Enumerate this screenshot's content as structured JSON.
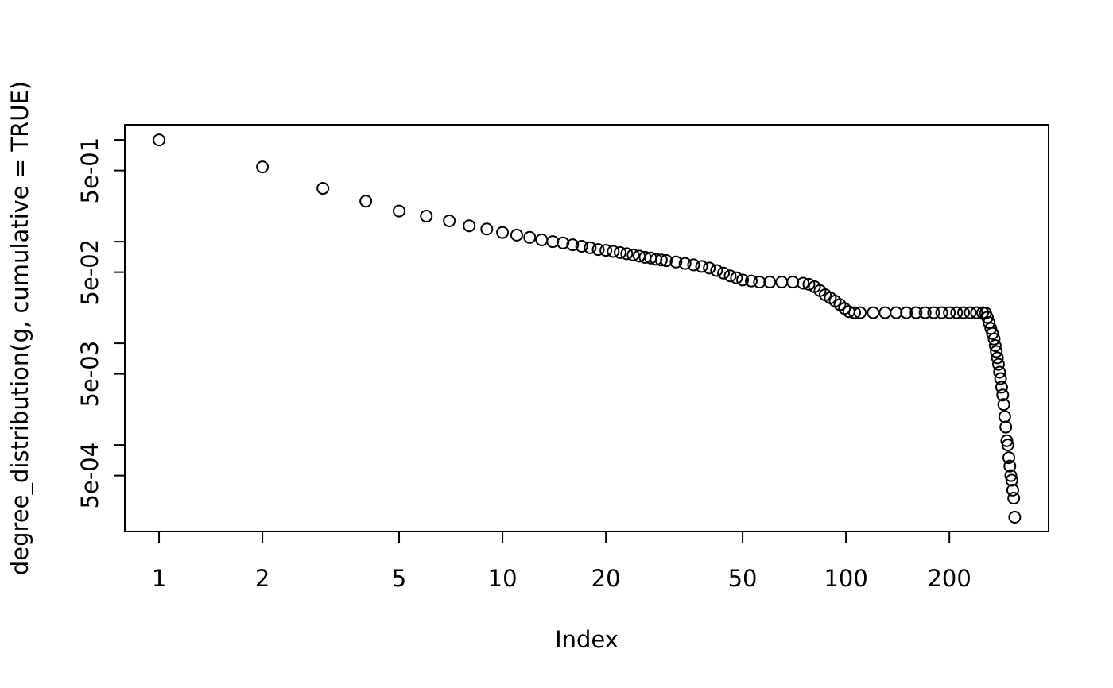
{
  "chart_data": {
    "type": "scatter",
    "xlabel": "Index",
    "ylabel": "degree_distribution(g, cumulative = TRUE)",
    "xlog": true,
    "ylog": true,
    "color": "#000000",
    "xlim": [
      0.795,
      389
    ],
    "ylim": [
      0.000141,
      1.41
    ],
    "xticks": [
      1,
      2,
      5,
      10,
      20,
      50,
      100,
      200
    ],
    "yticks": [
      {
        "value": 1,
        "label": null
      },
      {
        "value": 0.5,
        "label": "5e-01"
      },
      {
        "value": 0.1,
        "label": null
      },
      {
        "value": 0.05,
        "label": "5e-02"
      },
      {
        "value": 0.01,
        "label": null
      },
      {
        "value": 0.005,
        "label": "5e-03"
      },
      {
        "value": 0.001,
        "label": null
      },
      {
        "value": 0.0005,
        "label": "5e-04"
      }
    ],
    "x": [
      1,
      2,
      3,
      4,
      5,
      6,
      7,
      8,
      9,
      10,
      11,
      12,
      13,
      14,
      15,
      16,
      17,
      18,
      19,
      20,
      21,
      22,
      23,
      24,
      25,
      26,
      27,
      28,
      29,
      30,
      32,
      34,
      36,
      38,
      40,
      42,
      44,
      46,
      48,
      50,
      53,
      56,
      60,
      65,
      70,
      75,
      78,
      81,
      84,
      87,
      90,
      93,
      96,
      99,
      102,
      106,
      110,
      120,
      130,
      140,
      150,
      160,
      170,
      180,
      190,
      200,
      210,
      220,
      230,
      240,
      250,
      255,
      258,
      261,
      264,
      267,
      270,
      272,
      274,
      276,
      278,
      280,
      282,
      284,
      286,
      288,
      290,
      292,
      294,
      296,
      298,
      300,
      302,
      304,
      306,
      308,
      310
    ],
    "values": [
      1,
      0.542,
      0.334,
      0.25,
      0.2,
      0.178,
      0.16,
      0.143,
      0.133,
      0.123,
      0.116,
      0.11,
      0.104,
      0.1,
      0.097,
      0.093,
      0.09,
      0.087,
      0.0835,
      0.082,
      0.08,
      0.078,
      0.076,
      0.074,
      0.072,
      0.07,
      0.069,
      0.067,
      0.066,
      0.065,
      0.063,
      0.061,
      0.059,
      0.057,
      0.055,
      0.052,
      0.049,
      0.046,
      0.044,
      0.042,
      0.041,
      0.04,
      0.04,
      0.04,
      0.04,
      0.039,
      0.038,
      0.036,
      0.033,
      0.03,
      0.028,
      0.026,
      0.024,
      0.022,
      0.0205,
      0.02,
      0.02,
      0.02,
      0.02,
      0.02,
      0.02,
      0.02,
      0.02,
      0.02,
      0.02,
      0.02,
      0.02,
      0.02,
      0.02,
      0.02,
      0.02,
      0.0198,
      0.018,
      0.016,
      0.014,
      0.0125,
      0.011,
      0.0095,
      0.0083,
      0.0072,
      0.0062,
      0.0052,
      0.0045,
      0.0037,
      0.0031,
      0.0025,
      0.0019,
      0.0015,
      0.0011,
      0.001,
      0.00075,
      0.00062,
      0.0005,
      0.00045,
      0.00036,
      0.0003,
      0.000195
    ]
  }
}
